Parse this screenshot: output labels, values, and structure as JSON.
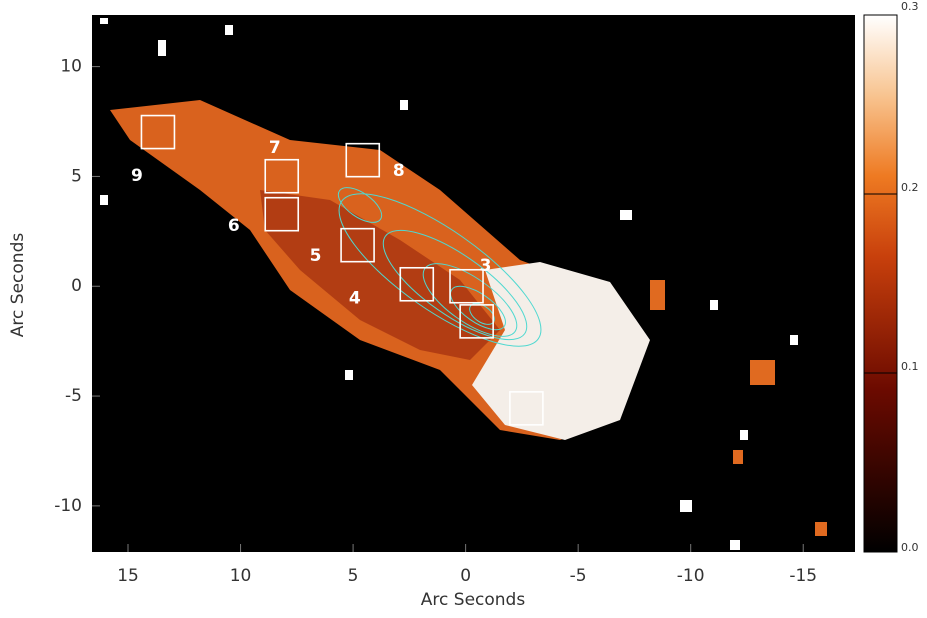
{
  "chart_data": {
    "type": "image-map",
    "x_label": "Arc Seconds",
    "y_label": "Arc Seconds",
    "xlim": [
      16.6,
      -17.3
    ],
    "ylim": [
      -12.1,
      12.35
    ],
    "xticks": [
      15,
      10,
      5,
      0,
      -5,
      -10,
      -15
    ],
    "yticks": [
      10,
      5,
      0,
      -5,
      -10
    ],
    "clim": [
      0,
      0.3
    ],
    "cticks": [
      {
        "value": 0,
        "label": "0.0"
      },
      {
        "value": 0.1,
        "label": "0.1"
      },
      {
        "value": 0.2,
        "label": "0.2"
      },
      {
        "value": 0.3,
        "label": "0.3"
      }
    ],
    "regions": [
      {
        "label": "9",
        "x": 13.67,
        "y": 7.02
      },
      {
        "label": "7",
        "x": 8.17,
        "y": 5.01
      },
      {
        "label": "6",
        "x": 8.17,
        "y": 3.28
      },
      {
        "label": "8",
        "x": 4.57,
        "y": 5.74
      },
      {
        "label": "5",
        "x": 4.8,
        "y": 1.87
      },
      {
        "label": "4",
        "x": 2.17,
        "y": 0.09
      },
      {
        "label": "3",
        "x": -0.04,
        "y": 0
      },
      {
        "label": null,
        "x": -0.49,
        "y": -1.6
      },
      {
        "label": null,
        "x": -2.7,
        "y": -5.56
      }
    ]
  }
}
